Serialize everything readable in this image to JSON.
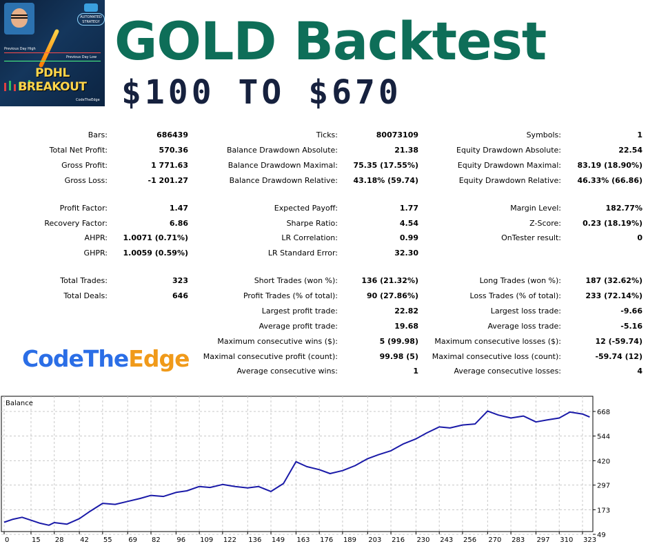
{
  "header": {
    "title": "GOLD Backtest",
    "subtitle": "$100 TO $670"
  },
  "thumbnail": {
    "title": "PDHL BREAKOUT",
    "badge": "AUTOMATED STRATEGY",
    "prev_high": "Previous Day High",
    "prev_low": "Previous Day Low",
    "brand": "CodeTheEdge",
    "colors": {
      "title": "#ffd54a",
      "bg": "#0b1f3a"
    }
  },
  "logo": {
    "part1": "CodeThe",
    "part2": "Edge",
    "colors": {
      "part1": "#2b6ee6",
      "part2": "#f09a1a"
    }
  },
  "stats": {
    "col1": {
      "bars": {
        "label": "Bars:",
        "value": "686439"
      },
      "total_net_profit": {
        "label": "Total Net Profit:",
        "value": "570.36"
      },
      "gross_profit": {
        "label": "Gross Profit:",
        "value": "1 771.63"
      },
      "gross_loss": {
        "label": "Gross Loss:",
        "value": "-1 201.27"
      },
      "profit_factor": {
        "label": "Profit Factor:",
        "value": "1.47"
      },
      "recovery_factor": {
        "label": "Recovery Factor:",
        "value": "6.86"
      },
      "ahpr": {
        "label": "AHPR:",
        "value": "1.0071 (0.71%)"
      },
      "ghpr": {
        "label": "GHPR:",
        "value": "1.0059 (0.59%)"
      },
      "total_trades": {
        "label": "Total Trades:",
        "value": "323"
      },
      "total_deals": {
        "label": "Total Deals:",
        "value": "646"
      }
    },
    "col2": {
      "ticks": {
        "label": "Ticks:",
        "value": "80073109"
      },
      "bal_dd_abs": {
        "label": "Balance Drawdown Absolute:",
        "value": "21.38"
      },
      "bal_dd_max": {
        "label": "Balance Drawdown Maximal:",
        "value": "75.35 (17.55%)"
      },
      "bal_dd_rel": {
        "label": "Balance Drawdown Relative:",
        "value": "43.18% (59.74)"
      },
      "expected_payoff": {
        "label": "Expected Payoff:",
        "value": "1.77"
      },
      "sharpe": {
        "label": "Sharpe Ratio:",
        "value": "4.54"
      },
      "lr_corr": {
        "label": "LR Correlation:",
        "value": "0.99"
      },
      "lr_err": {
        "label": "LR Standard Error:",
        "value": "32.30"
      },
      "short_trades": {
        "label": "Short Trades (won %):",
        "value": "136 (21.32%)"
      },
      "profit_trades": {
        "label": "Profit Trades (% of total):",
        "value": "90 (27.86%)"
      },
      "largest_profit": {
        "label": "Largest profit trade:",
        "value": "22.82"
      },
      "average_profit": {
        "label": "Average profit trade:",
        "value": "19.68"
      },
      "max_consec_wins": {
        "label": "Maximum consecutive wins ($):",
        "value": "5 (99.98)"
      },
      "maximal_consec_profit": {
        "label": "Maximal consecutive profit (count):",
        "value": "99.98 (5)"
      },
      "avg_consec_wins": {
        "label": "Average consecutive wins:",
        "value": "1"
      }
    },
    "col3": {
      "symbols": {
        "label": "Symbols:",
        "value": "1"
      },
      "eq_dd_abs": {
        "label": "Equity Drawdown Absolute:",
        "value": "22.54"
      },
      "eq_dd_max": {
        "label": "Equity Drawdown Maximal:",
        "value": "83.19 (18.90%)"
      },
      "eq_dd_rel": {
        "label": "Equity Drawdown Relative:",
        "value": "46.33% (66.86)"
      },
      "margin_level": {
        "label": "Margin Level:",
        "value": "182.77%"
      },
      "z_score": {
        "label": "Z-Score:",
        "value": "0.23 (18.19%)"
      },
      "ontester": {
        "label": "OnTester result:",
        "value": "0"
      },
      "long_trades": {
        "label": "Long Trades (won %):",
        "value": "187 (32.62%)"
      },
      "loss_trades": {
        "label": "Loss Trades (% of total):",
        "value": "233 (72.14%)"
      },
      "largest_loss": {
        "label": "Largest loss trade:",
        "value": "-9.66"
      },
      "average_loss": {
        "label": "Average loss trade:",
        "value": "-5.16"
      },
      "max_consec_losses": {
        "label": "Maximum consecutive losses ($):",
        "value": "12 (-59.74)"
      },
      "maximal_consec_loss": {
        "label": "Maximal consecutive loss (count):",
        "value": "-59.74 (12)"
      },
      "avg_consec_losses": {
        "label": "Average consecutive losses:",
        "value": "4"
      }
    }
  },
  "chart_data": {
    "type": "line",
    "title": "Balance",
    "x_ticks": [
      0,
      15,
      28,
      42,
      55,
      69,
      82,
      96,
      109,
      122,
      136,
      149,
      163,
      176,
      189,
      203,
      216,
      230,
      243,
      256,
      270,
      283,
      297,
      310,
      323
    ],
    "y_ticks": [
      49,
      173,
      297,
      420,
      544,
      668
    ],
    "xlim": [
      0,
      328
    ],
    "ylim": [
      49,
      668
    ],
    "grid": true,
    "line_color": "#1a1aa8",
    "series": [
      {
        "x": [
          0,
          5,
          10,
          15,
          20,
          25,
          28,
          35,
          42,
          48,
          55,
          62,
          69,
          76,
          82,
          89,
          96,
          102,
          109,
          115,
          122,
          129,
          136,
          142,
          149,
          156,
          163,
          169,
          176,
          182,
          189,
          196,
          203,
          209,
          216,
          223,
          230,
          236,
          243,
          249,
          256,
          263,
          270,
          276,
          283,
          290,
          297,
          303,
          310,
          316,
          323,
          327
        ],
        "y": [
          110,
          125,
          135,
          120,
          105,
          95,
          108,
          100,
          128,
          165,
          205,
          200,
          215,
          230,
          245,
          240,
          260,
          268,
          290,
          285,
          300,
          290,
          283,
          290,
          265,
          305,
          415,
          390,
          375,
          355,
          370,
          395,
          430,
          450,
          470,
          505,
          530,
          560,
          590,
          585,
          600,
          605,
          670,
          650,
          635,
          645,
          615,
          625,
          635,
          665,
          655,
          640
        ]
      }
    ]
  }
}
